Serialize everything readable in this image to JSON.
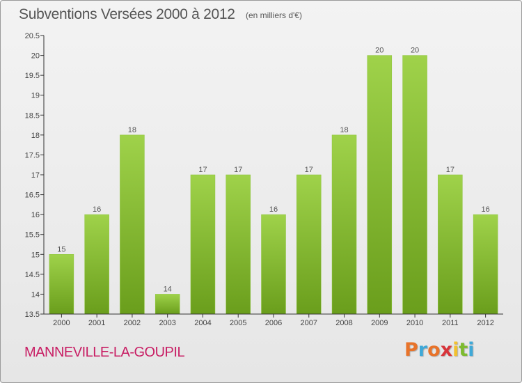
{
  "header": {
    "title": "Subventions Versées 2000 à 2012",
    "subtitle": "(en milliers d'€)"
  },
  "footer": {
    "commune": "MANNEVILLE-LA-GOUPIL",
    "logo": "Proxiti",
    "logo_colors": [
      "#e8732a",
      "#3fa9d8",
      "#e8732a",
      "#d8343a",
      "#f2c12e",
      "#7dbb2f",
      "#3fa9d8"
    ]
  },
  "colors": {
    "bar_top": "#9fd24a",
    "bar_bottom": "#6a9e1c",
    "axis": "#333333",
    "commune": "#c81e64"
  },
  "chart_data": {
    "type": "bar",
    "categories": [
      "2000",
      "2001",
      "2002",
      "2003",
      "2004",
      "2005",
      "2006",
      "2007",
      "2008",
      "2009",
      "2010",
      "2011",
      "2012"
    ],
    "values": [
      15,
      16,
      18,
      14,
      17,
      17,
      16,
      17,
      18,
      20,
      20,
      17,
      16
    ],
    "value_labels": [
      "15",
      "16",
      "18",
      "14",
      "17",
      "17",
      "16",
      "17",
      "18",
      "20",
      "20",
      "17",
      "16"
    ],
    "y_ticks": [
      "13.5",
      "14",
      "14.5",
      "15",
      "15.5",
      "16",
      "16.5",
      "17",
      "17.5",
      "18",
      "18.5",
      "19",
      "19.5",
      "20",
      "20.5"
    ],
    "ylim": [
      13.5,
      20.5
    ],
    "grid": false
  }
}
